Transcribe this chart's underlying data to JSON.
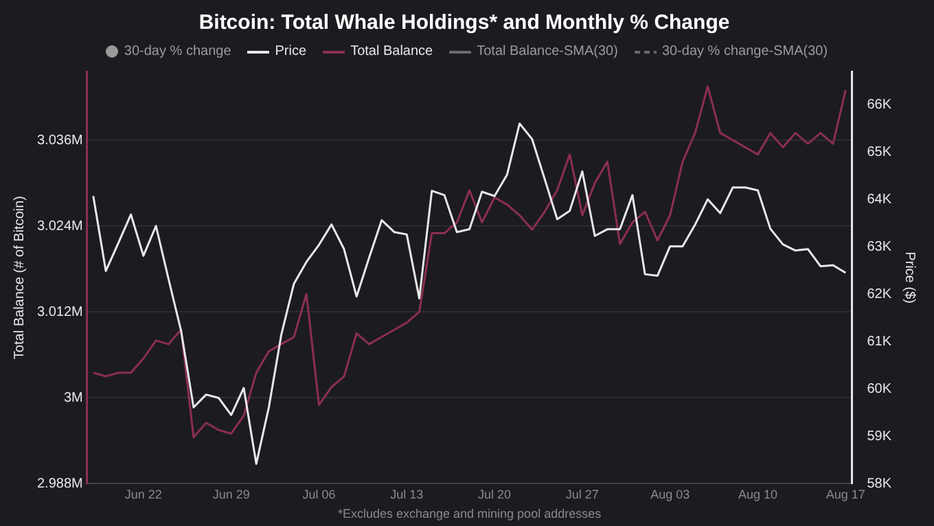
{
  "chart_data": {
    "type": "line",
    "title": "Bitcoin: Total Whale Holdings* and Monthly % Change",
    "xticks": [
      {
        "value": "--06-22",
        "label": "Jun 22"
      },
      {
        "value": "--06-29",
        "label": "Jun 29"
      },
      {
        "value": "--07-06",
        "label": "Jul 06"
      },
      {
        "value": "--07-13",
        "label": "Jul 13"
      },
      {
        "value": "--07-20",
        "label": "Jul 20"
      },
      {
        "value": "--07-27",
        "label": "Jul 27"
      },
      {
        "value": "--08-03",
        "label": "Aug 03"
      },
      {
        "value": "--08-10",
        "label": "Aug 10"
      },
      {
        "value": "--08-17",
        "label": "Aug 17"
      }
    ],
    "xlim": [
      "--06-17T12:00",
      "--08-17T12:00"
    ],
    "x": [
      "--06-18",
      "--06-19",
      "--06-20",
      "--06-21",
      "--06-22",
      "--06-23",
      "--06-24",
      "--06-25",
      "--06-26",
      "--06-27",
      "--06-28",
      "--06-29",
      "--06-30",
      "--07-01",
      "--07-02",
      "--07-03",
      "--07-04",
      "--07-05",
      "--07-06",
      "--07-07",
      "--07-08",
      "--07-09",
      "--07-10",
      "--07-11",
      "--07-12",
      "--07-13",
      "--07-14",
      "--07-15",
      "--07-16",
      "--07-17",
      "--07-18",
      "--07-19",
      "--07-20",
      "--07-21",
      "--07-22",
      "--07-23",
      "--07-24",
      "--07-25",
      "--07-26",
      "--07-27",
      "--07-28",
      "--07-29",
      "--07-30",
      "--07-31",
      "--08-01",
      "--08-02",
      "--08-03",
      "--08-04",
      "--08-05",
      "--08-06",
      "--08-07",
      "--08-08",
      "--08-09",
      "--08-10",
      "--08-11",
      "--08-12",
      "--08-13",
      "--08-14",
      "--08-15",
      "--08-16",
      "--08-17"
    ],
    "ylabel": "Total Balance (# of Bitcoin)",
    "y2label": "Price ($)",
    "ylim": [
      2988000,
      3045600
    ],
    "yticks": [
      {
        "value": 2988000,
        "label": "2.988M"
      },
      {
        "value": 3000000,
        "label": "3M"
      },
      {
        "value": 3012000,
        "label": "3.012M"
      },
      {
        "value": 3024000,
        "label": "3.024M"
      },
      {
        "value": 3036000,
        "label": "3.036M"
      }
    ],
    "y2lim": [
      58000,
      66700
    ],
    "y2ticks": [
      {
        "value": 58000,
        "label": "58K"
      },
      {
        "value": 59000,
        "label": "59K"
      },
      {
        "value": 60000,
        "label": "60K"
      },
      {
        "value": 61000,
        "label": "61K"
      },
      {
        "value": 62000,
        "label": "62K"
      },
      {
        "value": 63000,
        "label": "63K"
      },
      {
        "value": 64000,
        "label": "64K"
      },
      {
        "value": 65000,
        "label": "65K"
      },
      {
        "value": 66000,
        "label": "66K"
      }
    ],
    "grid": "y",
    "legend": "top",
    "marker": "none",
    "annotations": [
      "*Excludes exchange and mining pool addresses"
    ],
    "series": [
      {
        "name": "30-day % change",
        "type": "scatter",
        "color": "#9a9a9a",
        "values": [
          null,
          null,
          null,
          null,
          null,
          null,
          null,
          null,
          null,
          null,
          null,
          null,
          null,
          null,
          null,
          null,
          null,
          null,
          null,
          null,
          null,
          null,
          null,
          null,
          null,
          null,
          null,
          null,
          null,
          null,
          null,
          null,
          null,
          null,
          null,
          null,
          null,
          null,
          null,
          null,
          null,
          null,
          null,
          null,
          null,
          null,
          null,
          null,
          null,
          null,
          null,
          null,
          null,
          null,
          null,
          null,
          null,
          null,
          null,
          null,
          null
        ]
      },
      {
        "name": "Price",
        "color": "#e8e8e8",
        "axis": "y2",
        "values": [
          64070,
          62490,
          63080,
          63680,
          62810,
          63440,
          62320,
          61230,
          59610,
          59880,
          59810,
          59450,
          60020,
          58420,
          59610,
          61150,
          62220,
          62680,
          63040,
          63470,
          62950,
          61950,
          62770,
          63560,
          63310,
          63260,
          61910,
          64180,
          64090,
          63310,
          63370,
          64160,
          64070,
          64520,
          65600,
          65270,
          64430,
          63580,
          63760,
          64590,
          63230,
          63370,
          63370,
          64090,
          62420,
          62390,
          63010,
          63010,
          63470,
          64000,
          63710,
          64250,
          64250,
          64190,
          63380,
          63050,
          62920,
          62950,
          62590,
          62610,
          62450
        ]
      },
      {
        "name": "Total Balance",
        "color": "#8b2f4f",
        "values": [
          3003500,
          3003000,
          3003500,
          3003500,
          3005500,
          3008000,
          3007500,
          3009500,
          2994500,
          2996500,
          2995500,
          2995000,
          2997500,
          3003500,
          3006500,
          3007500,
          3008500,
          3014500,
          2999000,
          3001500,
          3003000,
          3009000,
          3007500,
          3008500,
          3009500,
          3010500,
          3012000,
          3023000,
          3023000,
          3024500,
          3029000,
          3024500,
          3028000,
          3027000,
          3025500,
          3023500,
          3026000,
          3029000,
          3034000,
          3025500,
          3030000,
          3033000,
          3021500,
          3024500,
          3026000,
          3022000,
          3025500,
          3033000,
          3037000,
          3043500,
          3037000,
          3036000,
          3035000,
          3034000,
          3037000,
          3035000,
          3037000,
          3035500,
          3037000,
          3035500,
          3043000
        ]
      },
      {
        "name": "Total Balance-SMA(30)",
        "color": "#6a6a6a",
        "values": [
          null,
          null,
          null,
          null,
          null,
          null,
          null,
          null,
          null,
          null,
          null,
          null,
          null,
          null,
          null,
          null,
          null,
          null,
          null,
          null,
          null,
          null,
          null,
          null,
          null,
          null,
          null,
          null,
          null,
          null,
          null,
          null,
          null,
          null,
          null,
          null,
          null,
          null,
          null,
          null,
          null,
          null,
          null,
          null,
          null,
          null,
          null,
          null,
          null,
          null,
          null,
          null,
          null,
          null,
          null,
          null,
          null,
          null,
          null,
          null,
          null
        ]
      },
      {
        "name": "30-day % change-SMA(30)",
        "color": "#6a6a6a",
        "line_style": "dashed",
        "values": [
          null,
          null,
          null,
          null,
          null,
          null,
          null,
          null,
          null,
          null,
          null,
          null,
          null,
          null,
          null,
          null,
          null,
          null,
          null,
          null,
          null,
          null,
          null,
          null,
          null,
          null,
          null,
          null,
          null,
          null,
          null,
          null,
          null,
          null,
          null,
          null,
          null,
          null,
          null,
          null,
          null,
          null,
          null,
          null,
          null,
          null,
          null,
          null,
          null,
          null,
          null,
          null,
          null,
          null,
          null,
          null,
          null,
          null,
          null,
          null,
          null
        ]
      }
    ]
  }
}
